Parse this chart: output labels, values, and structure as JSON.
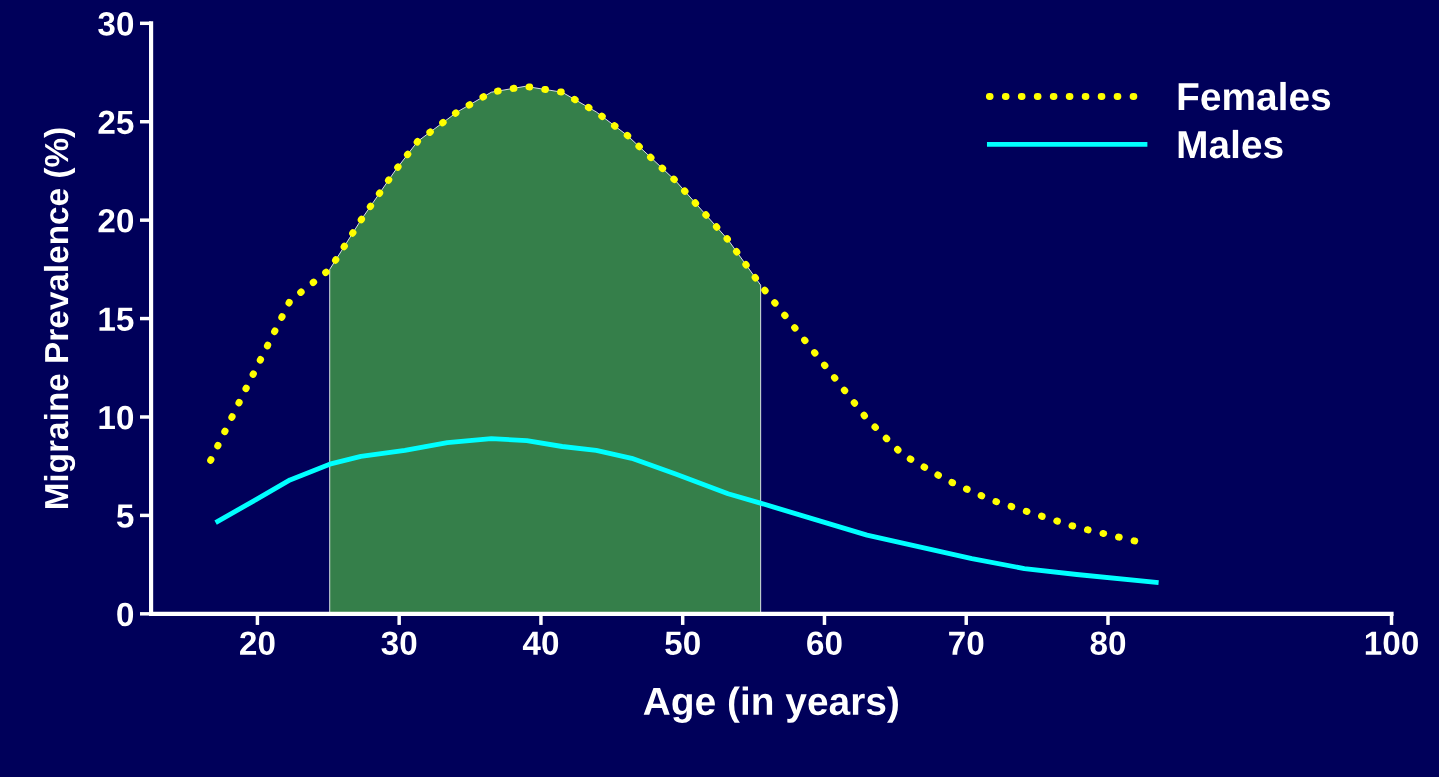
{
  "chart_data": {
    "type": "line",
    "xlabel": "Age (in years)",
    "ylabel": "Migraine Prevalence (%)",
    "xlim": [
      12.5,
      100
    ],
    "xticks": [
      20,
      30,
      40,
      50,
      60,
      70,
      80,
      100
    ],
    "ylim": [
      0,
      30
    ],
    "yticks": [
      0,
      5,
      10,
      15,
      20,
      25,
      30
    ],
    "grid": false,
    "legend": "top right",
    "series": [
      {
        "name": "Females",
        "color": "#ffff00",
        "line_style": "dotted",
        "x": [
          16.7,
          19.3,
          22.3,
          25.1,
          27.3,
          29.7,
          31.3,
          34.1,
          36.5,
          38.9,
          41.5,
          43.9,
          46.1,
          49.5,
          53.2,
          55.5,
          57.5,
          60.6,
          63.0,
          65.5,
          68.6,
          71.7,
          74.7,
          77.8,
          82.5
        ],
        "values": [
          7.8,
          11.6,
          15.9,
          17.5,
          20.0,
          22.5,
          24.0,
          25.5,
          26.5,
          26.8,
          26.5,
          25.5,
          24.3,
          22.0,
          19.0,
          16.7,
          14.9,
          12.1,
          9.9,
          8.1,
          6.8,
          5.8,
          5.1,
          4.4,
          3.6
        ]
      },
      {
        "name": "Males",
        "color": "#00ffff",
        "line_style": "solid",
        "x": [
          17.2,
          19.9,
          22.3,
          25.1,
          27.3,
          30.4,
          33.4,
          36.5,
          39.0,
          41.5,
          43.9,
          46.4,
          49.5,
          53.2,
          55.6,
          59.3,
          63.0,
          66.7,
          70.4,
          74.1,
          77.8,
          83.4
        ],
        "values": [
          4.7,
          5.8,
          6.8,
          7.6,
          8.0,
          8.3,
          8.7,
          8.9,
          8.8,
          8.5,
          8.3,
          7.9,
          7.1,
          6.1,
          5.6,
          4.8,
          4.0,
          3.4,
          2.8,
          2.3,
          2.0,
          1.6
        ]
      }
    ],
    "bands": [
      {
        "axis": "x",
        "from": 25.1,
        "to": 55.5,
        "color": "#357f4a"
      }
    ]
  }
}
